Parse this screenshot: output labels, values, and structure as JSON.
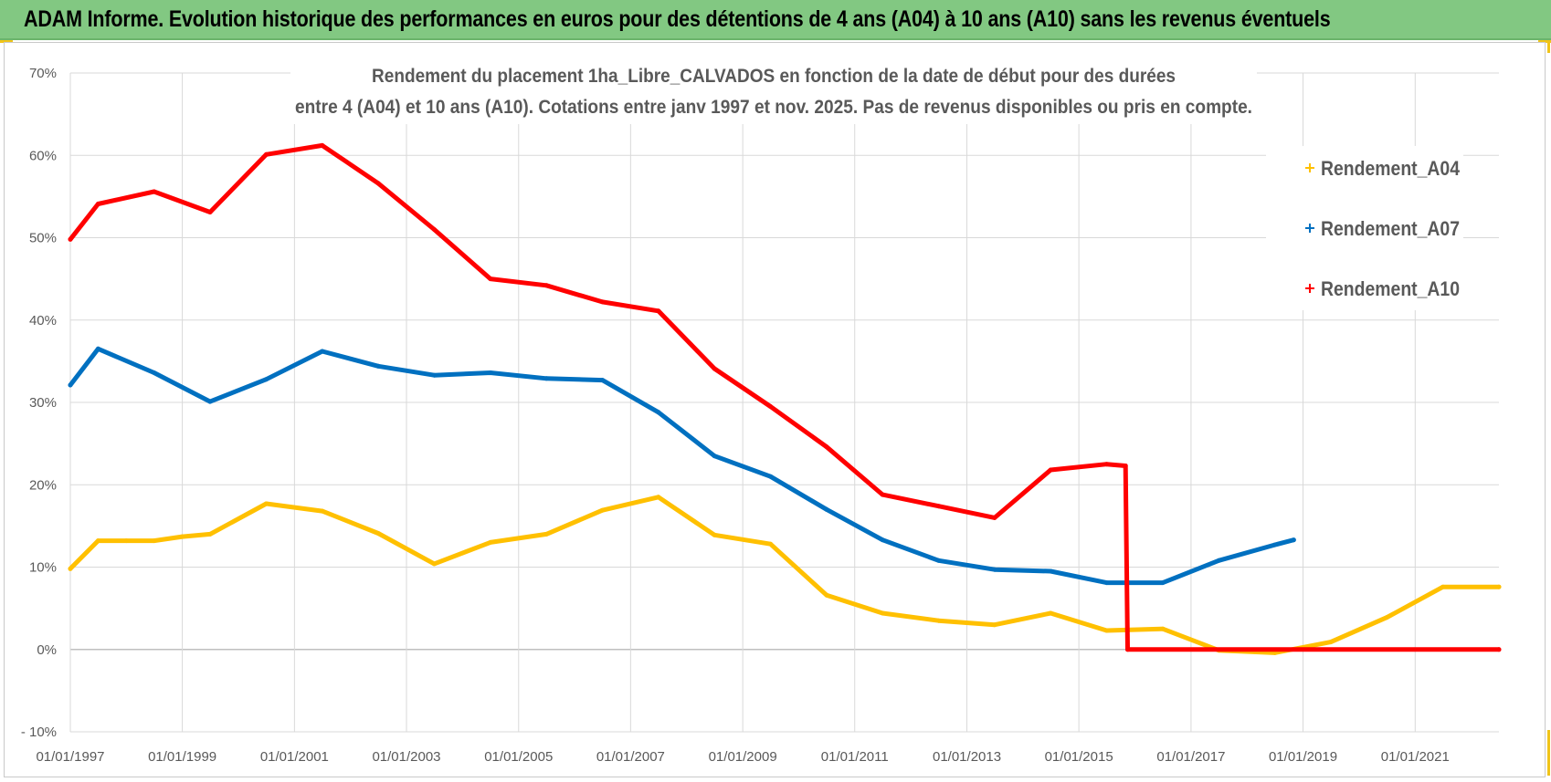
{
  "header": {
    "title": "ADAM Informe. Evolution historique des performances en euros pour des détentions de 4 ans (A04) à 10 ans (A10) sans les revenus éventuels"
  },
  "colors": {
    "banner": "#82c882",
    "A04": "#ffc000",
    "A07": "#0070c0",
    "A10": "#ff0000",
    "grid": "#d9d9d9",
    "zero_line": "#bfbfbf",
    "text": "#595959"
  },
  "chart_data": {
    "type": "line",
    "title_lines": [
      "Rendement du placement 1ha_Libre_CALVADOS en fonction de la date de début pour des durées",
      "entre 4 (A04) et 10 ans (A10). Cotations entre janv 1997 et nov. 2025. Pas de revenus disponibles ou pris en compte."
    ],
    "xlabel": "",
    "ylabel": "",
    "xlim": [
      "01/01/1997",
      "01/07/2022"
    ],
    "ylim": [
      -10,
      70
    ],
    "x_ticks": [
      "01/01/1997",
      "01/01/1999",
      "01/01/2001",
      "01/01/2003",
      "01/01/2005",
      "01/01/2007",
      "01/01/2009",
      "01/01/2011",
      "01/01/2013",
      "01/01/2015",
      "01/01/2017",
      "01/01/2019",
      "01/01/2021"
    ],
    "y_ticks": [
      "- 10%",
      "0%",
      "10%",
      "20%",
      "30%",
      "40%",
      "50%",
      "60%",
      "70%"
    ],
    "grid": true,
    "legend_position": "right",
    "series": [
      {
        "name": "Rendement_A04",
        "color": "#ffc000",
        "points": [
          [
            "1997-01-01",
            9.8
          ],
          [
            "1997-07-01",
            13.2
          ],
          [
            "1998-01-01",
            13.2
          ],
          [
            "1998-07-01",
            13.2
          ],
          [
            "1999-01-01",
            13.7
          ],
          [
            "1999-07-01",
            14.0
          ],
          [
            "2000-07-01",
            17.7
          ],
          [
            "2001-07-01",
            16.8
          ],
          [
            "2002-07-01",
            14.1
          ],
          [
            "2003-07-01",
            10.4
          ],
          [
            "2004-07-01",
            13.0
          ],
          [
            "2005-07-01",
            14.0
          ],
          [
            "2006-07-01",
            16.9
          ],
          [
            "2007-07-01",
            18.5
          ],
          [
            "2008-07-01",
            13.9
          ],
          [
            "2009-07-01",
            12.8
          ],
          [
            "2010-07-01",
            6.6
          ],
          [
            "2011-07-01",
            4.4
          ],
          [
            "2012-07-01",
            3.5
          ],
          [
            "2013-07-01",
            3.0
          ],
          [
            "2014-07-01",
            4.4
          ],
          [
            "2015-07-01",
            2.3
          ],
          [
            "2016-07-01",
            2.5
          ],
          [
            "2017-07-01",
            -0.1
          ],
          [
            "2018-07-01",
            -0.4
          ],
          [
            "2019-07-01",
            0.9
          ],
          [
            "2020-07-01",
            3.9
          ],
          [
            "2021-07-01",
            7.6
          ],
          [
            "2022-07-01",
            7.6
          ]
        ]
      },
      {
        "name": "Rendement_A07",
        "color": "#0070c0",
        "points": [
          [
            "1997-01-01",
            32.1
          ],
          [
            "1997-07-01",
            36.5
          ],
          [
            "1998-07-01",
            33.6
          ],
          [
            "1999-07-01",
            30.1
          ],
          [
            "2000-07-01",
            32.8
          ],
          [
            "2001-07-01",
            36.2
          ],
          [
            "2002-07-01",
            34.4
          ],
          [
            "2003-07-01",
            33.3
          ],
          [
            "2004-07-01",
            33.6
          ],
          [
            "2005-07-01",
            32.9
          ],
          [
            "2006-07-01",
            32.7
          ],
          [
            "2007-07-01",
            28.8
          ],
          [
            "2008-07-01",
            23.5
          ],
          [
            "2009-07-01",
            21.0
          ],
          [
            "2010-07-01",
            17.0
          ],
          [
            "2011-07-01",
            13.3
          ],
          [
            "2012-07-01",
            10.8
          ],
          [
            "2013-07-01",
            9.7
          ],
          [
            "2014-07-01",
            9.5
          ],
          [
            "2015-07-01",
            8.1
          ],
          [
            "2016-07-01",
            8.1
          ],
          [
            "2017-07-01",
            10.8
          ],
          [
            "2018-07-01",
            12.7
          ],
          [
            "2018-11-01",
            13.3
          ]
        ]
      },
      {
        "name": "Rendement_A10",
        "color": "#ff0000",
        "points": [
          [
            "1997-01-01",
            49.8
          ],
          [
            "1997-07-01",
            54.1
          ],
          [
            "1998-07-01",
            55.6
          ],
          [
            "1999-07-01",
            53.1
          ],
          [
            "2000-07-01",
            60.1
          ],
          [
            "2001-07-01",
            61.2
          ],
          [
            "2002-07-01",
            56.6
          ],
          [
            "2003-07-01",
            51.0
          ],
          [
            "2004-07-01",
            45.0
          ],
          [
            "2005-07-01",
            44.2
          ],
          [
            "2006-07-01",
            42.2
          ],
          [
            "2007-07-01",
            41.1
          ],
          [
            "2008-07-01",
            34.1
          ],
          [
            "2009-07-01",
            29.5
          ],
          [
            "2010-07-01",
            24.6
          ],
          [
            "2011-07-01",
            18.8
          ],
          [
            "2012-07-01",
            17.4
          ],
          [
            "2013-07-01",
            16.0
          ],
          [
            "2014-07-01",
            21.8
          ],
          [
            "2015-07-01",
            22.5
          ],
          [
            "2015-11-01",
            22.3
          ],
          [
            "2015-11-15",
            0.0
          ],
          [
            "2022-07-01",
            0.0
          ]
        ]
      }
    ]
  }
}
